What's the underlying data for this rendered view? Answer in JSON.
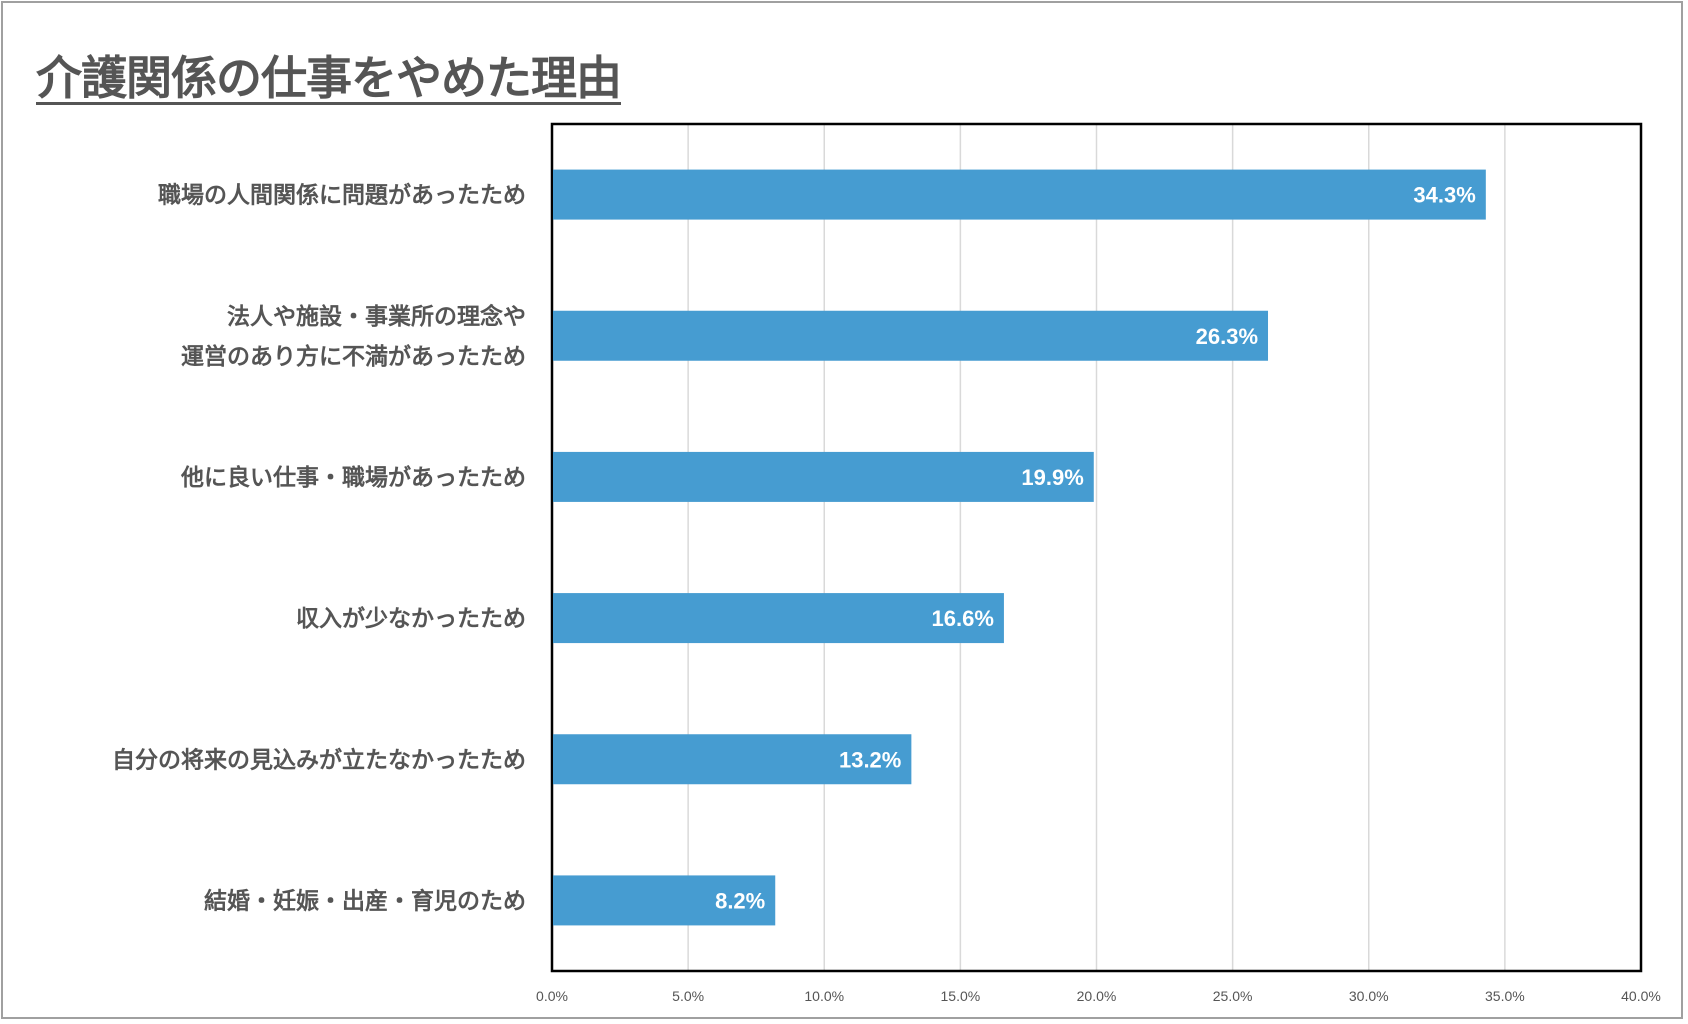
{
  "chart_data": {
    "type": "bar",
    "orientation": "horizontal",
    "title": "介護関係の仕事をやめた理由",
    "categories": [
      [
        "職場の人間関係に問題があったため"
      ],
      [
        "法人や施設・事業所の理念や",
        "運営のあり方に不満があったため"
      ],
      [
        "他に良い仕事・職場があったため"
      ],
      [
        "収入が少なかったため"
      ],
      [
        "自分の将来の見込みが立たなかったため"
      ],
      [
        "結婚・妊娠・出産・育児のため"
      ]
    ],
    "values": [
      34.3,
      26.3,
      19.9,
      16.6,
      13.2,
      8.2
    ],
    "value_labels": [
      "34.3%",
      "26.3%",
      "19.9%",
      "16.6%",
      "13.2%",
      "8.2%"
    ],
    "xlim": [
      0,
      40
    ],
    "x_ticks": [
      0,
      5,
      10,
      15,
      20,
      25,
      30,
      35,
      40
    ],
    "x_tick_labels": [
      "0.0%",
      "5.0%",
      "10.0%",
      "15.0%",
      "20.0%",
      "25.0%",
      "30.0%",
      "35.0%",
      "40.0%"
    ],
    "grid": "vertical",
    "bar_color": "#469cd1",
    "xlabel": "",
    "ylabel": ""
  }
}
